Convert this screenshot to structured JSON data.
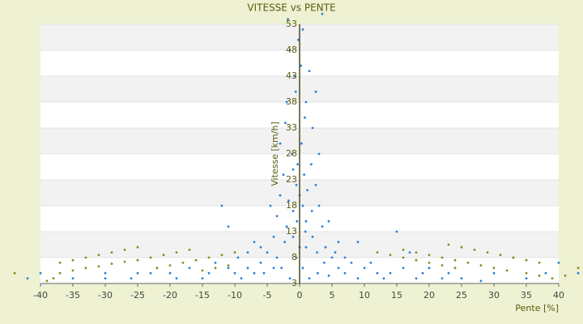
{
  "chart_data": {
    "type": "scatter",
    "title": "VITESSE vs PENTE",
    "x_label": "Pente [%]",
    "y_label": "Vitesse [km/h]",
    "xlim": [
      -40,
      40
    ],
    "xticks": [
      -40,
      -35,
      -30,
      -25,
      -20,
      -15,
      -10,
      -5,
      0,
      5,
      10,
      15,
      20,
      25,
      30,
      35,
      40
    ],
    "ylim": [
      3,
      53
    ],
    "yticks": [
      3,
      8,
      13,
      18,
      23,
      28,
      33,
      38,
      43,
      48,
      53
    ],
    "grid": true,
    "series": [
      {
        "color": "#2b7fd6",
        "x": [
          0,
          0.5,
          -0.5,
          1,
          -1,
          0.3,
          0.8,
          -0.6,
          0.2,
          -0.2,
          0.5,
          -1.5,
          1.5,
          -2,
          2,
          -1.2,
          1.8,
          -2.5,
          2.5,
          -3,
          3,
          -3.5,
          3.5,
          -2,
          2,
          -1,
          1,
          0,
          -0.5,
          0.5,
          -4,
          4,
          -5,
          5,
          -6,
          6,
          -7,
          7,
          -8,
          8,
          -9,
          9,
          -10,
          10,
          -4.5,
          4.5,
          -6,
          6,
          -3,
          3,
          -2.2,
          1,
          -0.8,
          2.5,
          -1.8,
          3.5,
          -3.5,
          3.8,
          -2.8,
          2.8,
          -1.5,
          1.5,
          -7,
          -12,
          -11,
          -13,
          12,
          13,
          15,
          17,
          20,
          25,
          -20,
          -25,
          -30,
          -30,
          -26,
          -22,
          -15,
          18,
          22,
          28,
          33,
          -42,
          -40,
          40,
          43,
          -1,
          1.2,
          -0.3,
          0.7,
          -1.7,
          1.9,
          -2.3,
          2.7,
          -0.4,
          0.9,
          -4,
          4.5,
          -5.5,
          5.5,
          -8,
          7,
          9,
          -9.5,
          11,
          -11,
          14,
          -14,
          16,
          -17,
          19,
          -19,
          23,
          -23,
          30,
          35,
          -35,
          38
        ],
        "values": [
          20,
          18,
          22,
          15,
          25,
          30,
          35,
          40,
          45,
          50,
          52,
          48,
          44,
          38,
          33,
          28,
          26,
          24,
          22,
          20,
          18,
          16,
          14,
          14,
          12,
          12,
          10,
          10,
          8,
          6,
          12,
          10,
          9,
          8,
          7,
          6,
          5,
          5,
          6,
          7,
          4,
          4,
          5,
          6,
          18,
          15,
          10,
          11,
          30,
          28,
          34,
          38,
          43,
          40,
          54,
          55,
          8,
          7,
          6,
          5,
          4,
          4,
          11,
          18,
          14,
          7,
          5,
          4,
          13,
          9,
          6,
          4,
          5,
          5,
          4,
          5,
          4,
          6,
          4,
          4,
          4,
          3.5,
          8,
          4,
          5,
          7,
          5,
          17,
          21,
          26,
          24,
          19,
          17,
          11,
          9,
          15,
          13,
          6,
          4.5,
          5,
          9,
          9,
          8,
          11,
          8,
          7,
          6,
          5,
          5,
          6,
          6,
          5,
          4,
          5,
          5,
          5,
          4,
          4,
          5
        ]
      },
      {
        "color": "#8a8a1e",
        "x": [
          -37,
          -35,
          -33,
          -31,
          -29,
          -27,
          -25,
          -37,
          -35,
          -33,
          -31,
          -29,
          -27,
          -25,
          -23,
          -21,
          -19,
          -17,
          -22,
          -20,
          -18,
          -16,
          -14,
          -12,
          -10,
          -15,
          -13,
          -11,
          -38,
          -39,
          12,
          14,
          16,
          18,
          20,
          22,
          24,
          16,
          18,
          20,
          22,
          24,
          26,
          28,
          30,
          32,
          23,
          25,
          27,
          29,
          31,
          33,
          35,
          37,
          35,
          37,
          39,
          41,
          -44,
          43
        ],
        "values": [
          7,
          7.5,
          8,
          8.5,
          9,
          9.5,
          10,
          5,
          5.5,
          6,
          6.3,
          6.8,
          7.2,
          7.5,
          8,
          8.5,
          9,
          9.5,
          6,
          6.5,
          7,
          7.5,
          8,
          8.5,
          9,
          5.5,
          6,
          6.5,
          4,
          3.5,
          9,
          8.5,
          8,
          7.5,
          7,
          6.5,
          6,
          9.5,
          9,
          8.5,
          8,
          7.5,
          7,
          6.5,
          6,
          5.5,
          10.5,
          10,
          9.5,
          9,
          8.5,
          8,
          7.5,
          7,
          5,
          4.5,
          4,
          4.5,
          5,
          6
        ]
      }
    ]
  }
}
